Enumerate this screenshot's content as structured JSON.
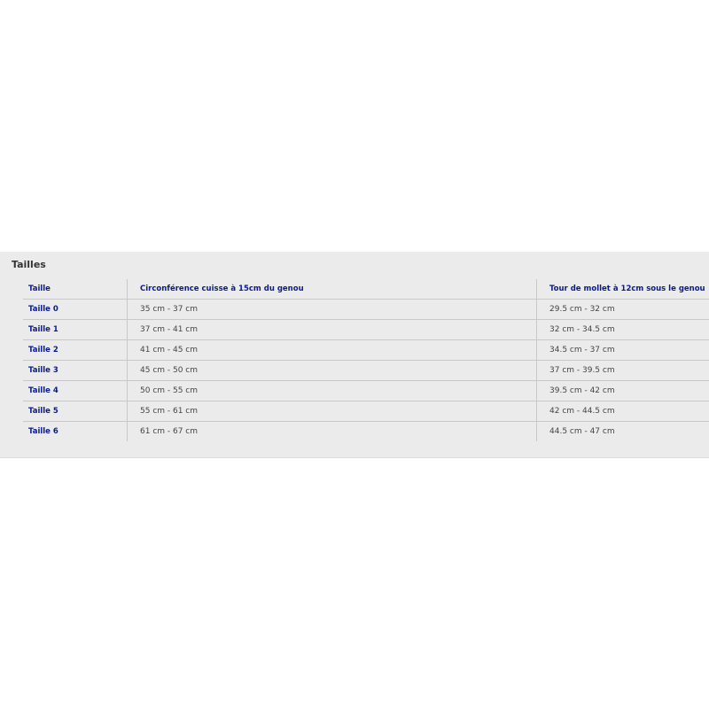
{
  "title": "Tailles",
  "table": {
    "header": [
      "Taille",
      "Circonférence cuisse à 15cm du genou",
      "Tour de mollet à 12cm sous le genou"
    ],
    "rows": [
      [
        "Taille 0",
        "35 cm - 37 cm",
        "29.5 cm - 32 cm"
      ],
      [
        "Taille 1",
        "37 cm - 41 cm",
        "32 cm - 34.5 cm"
      ],
      [
        "Taille 2",
        "41 cm - 45 cm",
        "34.5 cm - 37 cm"
      ],
      [
        "Taille 3",
        "45 cm - 50 cm",
        "37 cm - 39.5 cm"
      ],
      [
        "Taille 4",
        "50 cm - 55 cm",
        "39.5 cm - 42 cm"
      ],
      [
        "Taille 5",
        "55 cm - 61 cm",
        "42 cm - 44.5 cm"
      ],
      [
        "Taille 6",
        "61 cm - 67 cm",
        "44.5 cm - 47 cm"
      ]
    ]
  }
}
